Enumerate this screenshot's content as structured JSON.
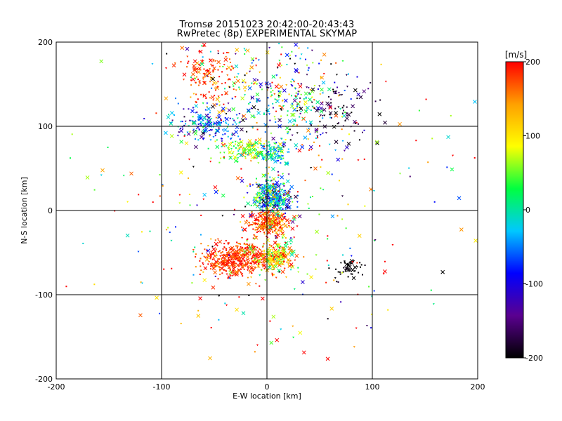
{
  "chart_data": {
    "type": "scatter",
    "title": "Tromsø 20151023 20:42:00-20:43:43",
    "subtitle": "RwPretec (8p) EXPERIMENTAL SKYMAP",
    "xlabel": "E-W location [km]",
    "ylabel": "N-S location [km]",
    "xlim": [
      -200,
      200
    ],
    "ylim": [
      -200,
      200
    ],
    "x_ticks": [
      -200,
      -100,
      0,
      100,
      200
    ],
    "y_ticks": [
      -200,
      -100,
      0,
      100,
      200
    ],
    "grid": true,
    "colorbar": {
      "label": "[m/s]",
      "range": [
        -200,
        200
      ],
      "ticks": [
        -200,
        -100,
        0,
        100,
        200
      ],
      "colormap": [
        "#000000",
        "#5a0090",
        "#0000ff",
        "#00c8ff",
        "#00ff40",
        "#ffff00",
        "#ffa000",
        "#ff0000"
      ]
    },
    "markers": [
      "x",
      "dot",
      "triangle"
    ],
    "clusters": [
      {
        "x": 5,
        "y": 15,
        "count": 380,
        "spread": [
          9,
          10
        ],
        "velocity_mean": -30,
        "velocity_spread": 70
      },
      {
        "x": 2,
        "y": -15,
        "count": 260,
        "spread": [
          10,
          7
        ],
        "velocity_mean": 170,
        "velocity_spread": 40
      },
      {
        "x": -28,
        "y": -58,
        "count": 460,
        "spread": [
          17,
          10
        ],
        "velocity_mean": 185,
        "velocity_spread": 25
      },
      {
        "x": 8,
        "y": -55,
        "count": 220,
        "spread": [
          8,
          8
        ],
        "velocity_mean": 110,
        "velocity_spread": 60
      },
      {
        "x": 20,
        "y": 125,
        "count": 240,
        "spread": [
          25,
          25
        ],
        "velocity_mean": 0,
        "velocity_spread": 120
      },
      {
        "x": -55,
        "y": 160,
        "count": 140,
        "spread": [
          15,
          18
        ],
        "velocity_mean": 180,
        "velocity_spread": 30
      },
      {
        "x": -55,
        "y": 105,
        "count": 180,
        "spread": [
          18,
          12
        ],
        "velocity_mean": -60,
        "velocity_spread": 60
      },
      {
        "x": -20,
        "y": 72,
        "count": 140,
        "spread": [
          14,
          7
        ],
        "velocity_mean": 60,
        "velocity_spread": 40
      },
      {
        "x": 5,
        "y": 68,
        "count": 100,
        "spread": [
          8,
          6
        ],
        "velocity_mean": -20,
        "velocity_spread": 40
      },
      {
        "x": 65,
        "y": 115,
        "count": 80,
        "spread": [
          20,
          20
        ],
        "velocity_mean": -180,
        "velocity_spread": 20
      },
      {
        "x": 78,
        "y": -68,
        "count": 45,
        "spread": [
          8,
          6
        ],
        "velocity_mean": -200,
        "velocity_spread": 5
      },
      {
        "x": -10,
        "y": 165,
        "count": 100,
        "spread": [
          35,
          25
        ],
        "velocity_mean": 50,
        "velocity_spread": 140
      },
      {
        "x": 0,
        "y": 0,
        "count": 350,
        "spread": [
          85,
          95
        ],
        "velocity_mean": 80,
        "velocity_spread": 140
      }
    ]
  }
}
